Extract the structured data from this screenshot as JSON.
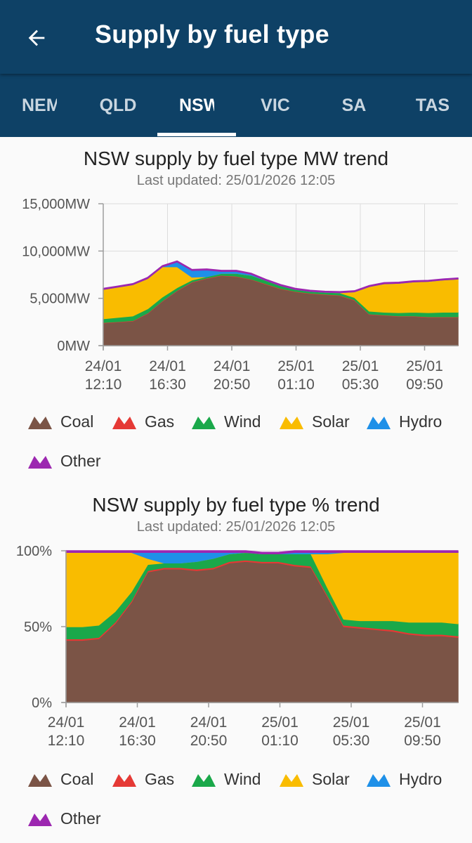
{
  "header": {
    "title": "Supply by fuel type",
    "back_icon": "arrow-left-icon"
  },
  "tabs": [
    {
      "label": "NEM",
      "active": false
    },
    {
      "label": "QLD",
      "active": false
    },
    {
      "label": "NSW",
      "active": true
    },
    {
      "label": "VIC",
      "active": false
    },
    {
      "label": "SA",
      "active": false
    },
    {
      "label": "TAS",
      "active": false
    }
  ],
  "colors": {
    "appbar": "#0e4166",
    "Coal": "#7b5446",
    "Gas": "#e53935",
    "Wind": "#1aa84a",
    "Solar": "#f9bc00",
    "Hydro": "#1e90e8",
    "Other": "#9c27b0"
  },
  "legend": [
    "Coal",
    "Gas",
    "Wind",
    "Solar",
    "Hydro",
    "Other"
  ],
  "chart_data": [
    {
      "type": "area",
      "stacked": true,
      "title": "NSW supply by fuel type MW trend",
      "subtitle": "Last updated: 25/01/2026 12:05",
      "ylim": [
        0,
        15000
      ],
      "yticks": [
        "0MW",
        "5,000MW",
        "10,000MW",
        "15,000MW"
      ],
      "xticks": [
        [
          "24/01",
          "12:10"
        ],
        [
          "24/01",
          "16:30"
        ],
        [
          "24/01",
          "20:50"
        ],
        [
          "25/01",
          "01:10"
        ],
        [
          "25/01",
          "05:30"
        ],
        [
          "25/01",
          "09:50"
        ]
      ],
      "grid": true,
      "x_hours": [
        0,
        1,
        2,
        3,
        4,
        5,
        6,
        7,
        8,
        9,
        10,
        11,
        12,
        13,
        14,
        15,
        16,
        17,
        18,
        19,
        20,
        21,
        22,
        23,
        24
      ],
      "series": [
        {
          "name": "Coal",
          "values": [
            2400,
            2500,
            2600,
            3400,
            4700,
            5800,
            6700,
            7100,
            7400,
            7300,
            7000,
            6500,
            6000,
            5700,
            5500,
            5400,
            5300,
            4800,
            3300,
            3200,
            3100,
            3100,
            3000,
            3000,
            3000
          ]
        },
        {
          "name": "Gas",
          "values": [
            50,
            50,
            50,
            50,
            50,
            50,
            50,
            50,
            50,
            50,
            50,
            50,
            50,
            50,
            50,
            50,
            50,
            50,
            50,
            50,
            50,
            50,
            50,
            50,
            50
          ]
        },
        {
          "name": "Wind",
          "values": [
            400,
            450,
            500,
            450,
            400,
            300,
            200,
            150,
            200,
            300,
            400,
            350,
            300,
            200,
            200,
            200,
            250,
            250,
            300,
            300,
            350,
            400,
            450,
            500,
            500
          ]
        },
        {
          "name": "Solar",
          "values": [
            3100,
            3200,
            3300,
            3200,
            3200,
            2200,
            300,
            0,
            0,
            0,
            0,
            0,
            0,
            0,
            0,
            0,
            10,
            600,
            2600,
            3000,
            3100,
            3200,
            3300,
            3400,
            3500
          ]
        },
        {
          "name": "Hydro",
          "values": [
            0,
            0,
            0,
            0,
            0,
            500,
            700,
            700,
            200,
            200,
            100,
            0,
            0,
            0,
            0,
            0,
            0,
            0,
            0,
            0,
            0,
            0,
            0,
            0,
            0
          ]
        },
        {
          "name": "Other",
          "values": [
            100,
            100,
            100,
            100,
            100,
            100,
            100,
            100,
            100,
            100,
            100,
            100,
            100,
            100,
            100,
            100,
            100,
            100,
            100,
            100,
            100,
            100,
            100,
            100,
            100
          ]
        }
      ]
    },
    {
      "type": "area",
      "stacked": true,
      "title": "NSW supply by fuel type % trend",
      "subtitle": "Last updated: 25/01/2026 12:05",
      "ylim": [
        0,
        100
      ],
      "yticks": [
        "0%",
        "50%",
        "100%"
      ],
      "xticks": [
        [
          "24/01",
          "12:10"
        ],
        [
          "24/01",
          "16:30"
        ],
        [
          "24/01",
          "20:50"
        ],
        [
          "25/01",
          "01:10"
        ],
        [
          "25/01",
          "05:30"
        ],
        [
          "25/01",
          "09:50"
        ]
      ],
      "grid": true,
      "x_hours": [
        0,
        1,
        2,
        3,
        4,
        5,
        6,
        7,
        8,
        9,
        10,
        11,
        12,
        13,
        14,
        15,
        16,
        17,
        18,
        19,
        20,
        21,
        22,
        23,
        24
      ],
      "series": [
        {
          "name": "Coal",
          "values": [
            41,
            41,
            42,
            52,
            66,
            86,
            88,
            88,
            87,
            88,
            92,
            93,
            92,
            92,
            90,
            89,
            70,
            50,
            49,
            48,
            47,
            45,
            44,
            44,
            43
          ]
        },
        {
          "name": "Gas",
          "values": [
            1,
            1,
            1,
            1,
            1,
            1,
            1,
            1,
            1,
            1,
            1,
            1,
            1,
            1,
            1,
            1,
            1,
            1,
            1,
            1,
            1,
            1,
            1,
            1,
            1
          ]
        },
        {
          "name": "Wind",
          "values": [
            8,
            8,
            8,
            7,
            6,
            4,
            3,
            3,
            5,
            6,
            5,
            5,
            5,
            5,
            7,
            8,
            5,
            4,
            4,
            5,
            6,
            7,
            8,
            8,
            8
          ]
        },
        {
          "name": "Solar",
          "values": [
            49,
            49,
            48,
            39,
            26,
            4,
            0,
            0,
            0,
            0,
            0,
            0,
            0,
            0,
            0,
            0,
            22,
            44,
            45,
            45,
            45,
            46,
            46,
            46,
            47
          ]
        },
        {
          "name": "Hydro",
          "values": [
            0,
            0,
            0,
            0,
            0,
            4,
            7,
            7,
            6,
            4,
            1,
            0,
            0,
            0,
            1,
            1,
            1,
            0,
            0,
            0,
            0,
            0,
            0,
            0,
            0
          ]
        },
        {
          "name": "Other",
          "values": [
            1,
            1,
            1,
            1,
            1,
            1,
            1,
            1,
            1,
            1,
            1,
            1,
            1,
            1,
            1,
            1,
            1,
            1,
            1,
            1,
            1,
            1,
            1,
            1,
            1
          ]
        }
      ]
    }
  ]
}
